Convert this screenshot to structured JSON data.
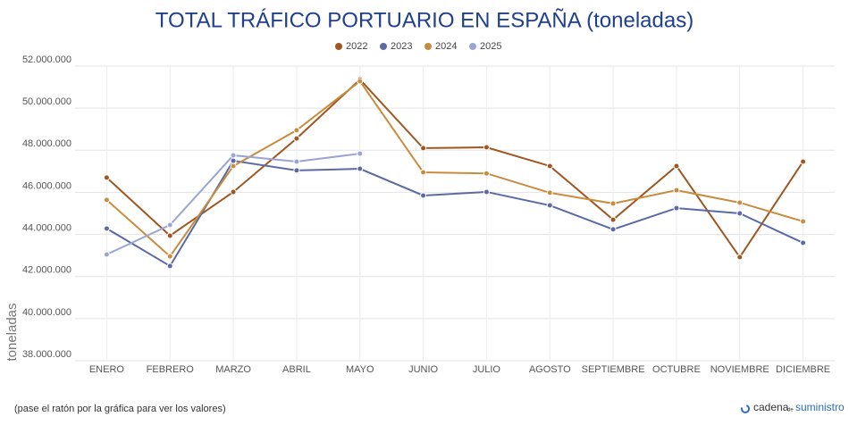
{
  "chart_data": {
    "type": "line",
    "title": "TOTAL TRÁFICO PORTUARIO EN ESPAÑA (toneladas)",
    "y_label": "toneladas",
    "note": "(pase el ratón por la gráfica para ver los valores)",
    "logo": {
      "part1": "cadena",
      "part2": "de",
      "part3": "suministro"
    },
    "categories": [
      "ENERO",
      "FEBRERO",
      "MARZO",
      "ABRIL",
      "MAYO",
      "JUNIO",
      "JULIO",
      "AGOSTO",
      "SEPTIEMBRE",
      "OCTUBRE",
      "NOVIEMBRE",
      "DICIEMBRE"
    ],
    "series": [
      {
        "name": "2022",
        "color": "#a0561f",
        "values": [
          46700000,
          43940000,
          46020000,
          48560000,
          51360000,
          48100000,
          48140000,
          47250000,
          44700000,
          47250000,
          42920000,
          47460000
        ]
      },
      {
        "name": "2023",
        "color": "#5b6aa4",
        "values": [
          44280000,
          42500000,
          47500000,
          47040000,
          47120000,
          45850000,
          46020000,
          45380000,
          44240000,
          45250000,
          45000000,
          43600000
        ]
      },
      {
        "name": "2024",
        "color": "#c98c3e",
        "values": [
          45640000,
          42960000,
          47250000,
          48950000,
          51280000,
          46950000,
          46900000,
          45980000,
          45470000,
          46100000,
          45510000,
          44620000
        ]
      },
      {
        "name": "2025",
        "color": "#9aa6d2",
        "values": [
          43050000,
          44450000,
          47760000,
          47460000,
          47840000,
          null,
          null,
          null,
          null,
          null,
          null,
          null
        ]
      }
    ],
    "ylim": [
      38000000,
      52000000
    ],
    "yticks": [
      {
        "value": 38000000,
        "label": "38.000.000"
      },
      {
        "value": 40000000,
        "label": "40.000.000"
      },
      {
        "value": 42000000,
        "label": "42.000.000"
      },
      {
        "value": 44000000,
        "label": "44.000.000"
      },
      {
        "value": 46000000,
        "label": "46.000.000"
      },
      {
        "value": 48000000,
        "label": "48.000.000"
      },
      {
        "value": 50000000,
        "label": "50.000.000"
      },
      {
        "value": 52000000,
        "label": "52.000.000"
      }
    ],
    "grid": true,
    "legend": "top"
  }
}
